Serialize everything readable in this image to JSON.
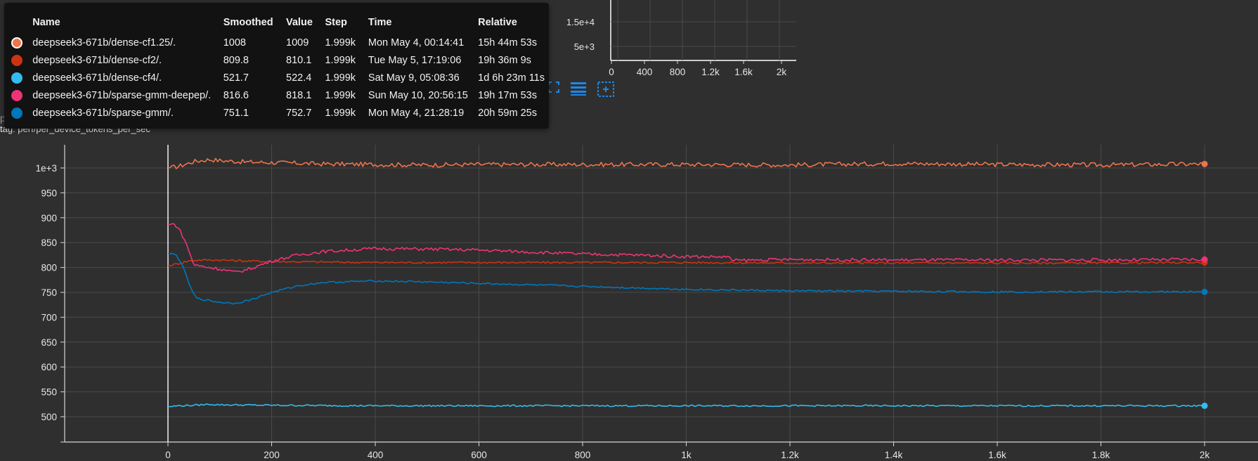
{
  "tooltip": {
    "headers": [
      "Name",
      "Smoothed",
      "Value",
      "Step",
      "Time",
      "Relative"
    ],
    "rows": [
      {
        "color": "#f0734a",
        "selected": true,
        "name": "deepseek3-671b/dense-cf1.25/.",
        "smoothed": "1008",
        "value": "1009",
        "step": "1.999k",
        "time": "Mon May 4, 00:14:41",
        "relative": "15h 44m 53s"
      },
      {
        "color": "#cc3311",
        "selected": false,
        "name": "deepseek3-671b/dense-cf2/.",
        "smoothed": "809.8",
        "value": "810.1",
        "step": "1.999k",
        "time": "Tue May 5, 17:19:06",
        "relative": "19h 36m 9s"
      },
      {
        "color": "#33bbee",
        "selected": false,
        "name": "deepseek3-671b/dense-cf4/.",
        "smoothed": "521.7",
        "value": "522.4",
        "step": "1.999k",
        "time": "Sat May 9, 05:08:36",
        "relative": "1d 6h 23m 11s"
      },
      {
        "color": "#ee3377",
        "selected": false,
        "name": "deepseek3-671b/sparse-gmm-deepep/.",
        "smoothed": "816.6",
        "value": "818.1",
        "step": "1.999k",
        "time": "Sun May 10, 20:56:15",
        "relative": "19h 17m 53s"
      },
      {
        "color": "#0077bb",
        "selected": false,
        "name": "deepseek3-671b/sparse-gmm/.",
        "smoothed": "751.1",
        "value": "752.7",
        "step": "1.999k",
        "time": "Mon May 4, 21:28:19",
        "relative": "20h 59m 25s"
      }
    ]
  },
  "card": {
    "title": "per_device_tokens_per_sec",
    "tag": "tag: perf/per_device_tokens_per_sec"
  },
  "toolbar": {
    "icons": [
      "expand-icon",
      "legend-toggle-icon",
      "fit-domain-icon"
    ],
    "accent": "#1e88e5"
  },
  "background_chart": {
    "x_ticks": [
      "0",
      "400",
      "800",
      "1.2k",
      "1.6k",
      "2k"
    ],
    "y_ticks": [
      "1.5e+4",
      "5e+3"
    ]
  },
  "chart_data": {
    "type": "line",
    "title": "per_device_tokens_per_sec",
    "xlabel": "",
    "ylabel": "",
    "xlim": [
      -200,
      2050
    ],
    "ylim": [
      478,
      1050
    ],
    "x_ticks": [
      0,
      200,
      400,
      600,
      800,
      1000,
      1200,
      1400,
      1600,
      1800,
      2000
    ],
    "x_tick_labels": [
      "0",
      "200",
      "400",
      "600",
      "800",
      "1k",
      "1.2k",
      "1.4k",
      "1.6k",
      "1.8k",
      "2k"
    ],
    "y_ticks": [
      500,
      550,
      600,
      650,
      700,
      750,
      800,
      850,
      900,
      950,
      1000
    ],
    "y_tick_labels": [
      "500",
      "550",
      "600",
      "650",
      "700",
      "750",
      "800",
      "850",
      "900",
      "950",
      "1e+3"
    ],
    "grid": true,
    "series": [
      {
        "name": "deepseek3-671b/dense-cf1.25/.",
        "color": "#f0734a",
        "x": [
          0,
          20,
          50,
          80,
          100,
          150,
          200,
          300,
          400,
          500,
          600,
          800,
          1000,
          1200,
          1400,
          1600,
          1800,
          2000
        ],
        "y": [
          1000,
          1003,
          1013,
          1017,
          1015,
          1012,
          1011,
          1008,
          1007,
          1006,
          1007,
          1007,
          1007,
          1006,
          1009,
          1007,
          1006,
          1008
        ]
      },
      {
        "name": "deepseek3-671b/dense-cf2/.",
        "color": "#cc3311",
        "x": [
          0,
          20,
          40,
          60,
          100,
          150,
          200,
          300,
          400,
          600,
          800,
          1000,
          1200,
          1400,
          1600,
          1800,
          2000
        ],
        "y": [
          803,
          808,
          813,
          815,
          815,
          813,
          812,
          811,
          810,
          810,
          810,
          810,
          809,
          809,
          809,
          809,
          810
        ]
      },
      {
        "name": "deepseek3-671b/dense-cf4/.",
        "color": "#33bbee",
        "x": [
          0,
          20,
          50,
          80,
          100,
          200,
          400,
          600,
          800,
          1000,
          1200,
          1400,
          1600,
          1800,
          2000
        ],
        "y": [
          520,
          522,
          523,
          525,
          524,
          523,
          522,
          522,
          522,
          522,
          522,
          522,
          522,
          522,
          522
        ]
      },
      {
        "name": "deepseek3-671b/sparse-gmm-deepep/.",
        "color": "#ee3377",
        "x": [
          0,
          10,
          20,
          30,
          40,
          50,
          80,
          100,
          130,
          160,
          200,
          250,
          300,
          400,
          500,
          600,
          700,
          800,
          900,
          1000,
          1080,
          1090,
          1200,
          1400,
          1600,
          1800,
          2000
        ],
        "y": [
          885,
          888,
          880,
          860,
          835,
          805,
          800,
          797,
          790,
          798,
          813,
          825,
          832,
          838,
          837,
          835,
          831,
          827,
          825,
          822,
          821,
          814,
          816,
          815,
          815,
          815,
          816
        ]
      },
      {
        "name": "deepseek3-671b/sparse-gmm/.",
        "color": "#0077bb",
        "x": [
          0,
          15,
          25,
          35,
          45,
          55,
          70,
          100,
          130,
          160,
          200,
          250,
          300,
          400,
          500,
          600,
          700,
          800,
          1000,
          1200,
          1400,
          1600,
          1800,
          2000
        ],
        "y": [
          828,
          826,
          810,
          785,
          755,
          738,
          735,
          730,
          728,
          735,
          750,
          763,
          770,
          773,
          771,
          768,
          765,
          762,
          756,
          753,
          752,
          751,
          751,
          751
        ]
      }
    ]
  }
}
